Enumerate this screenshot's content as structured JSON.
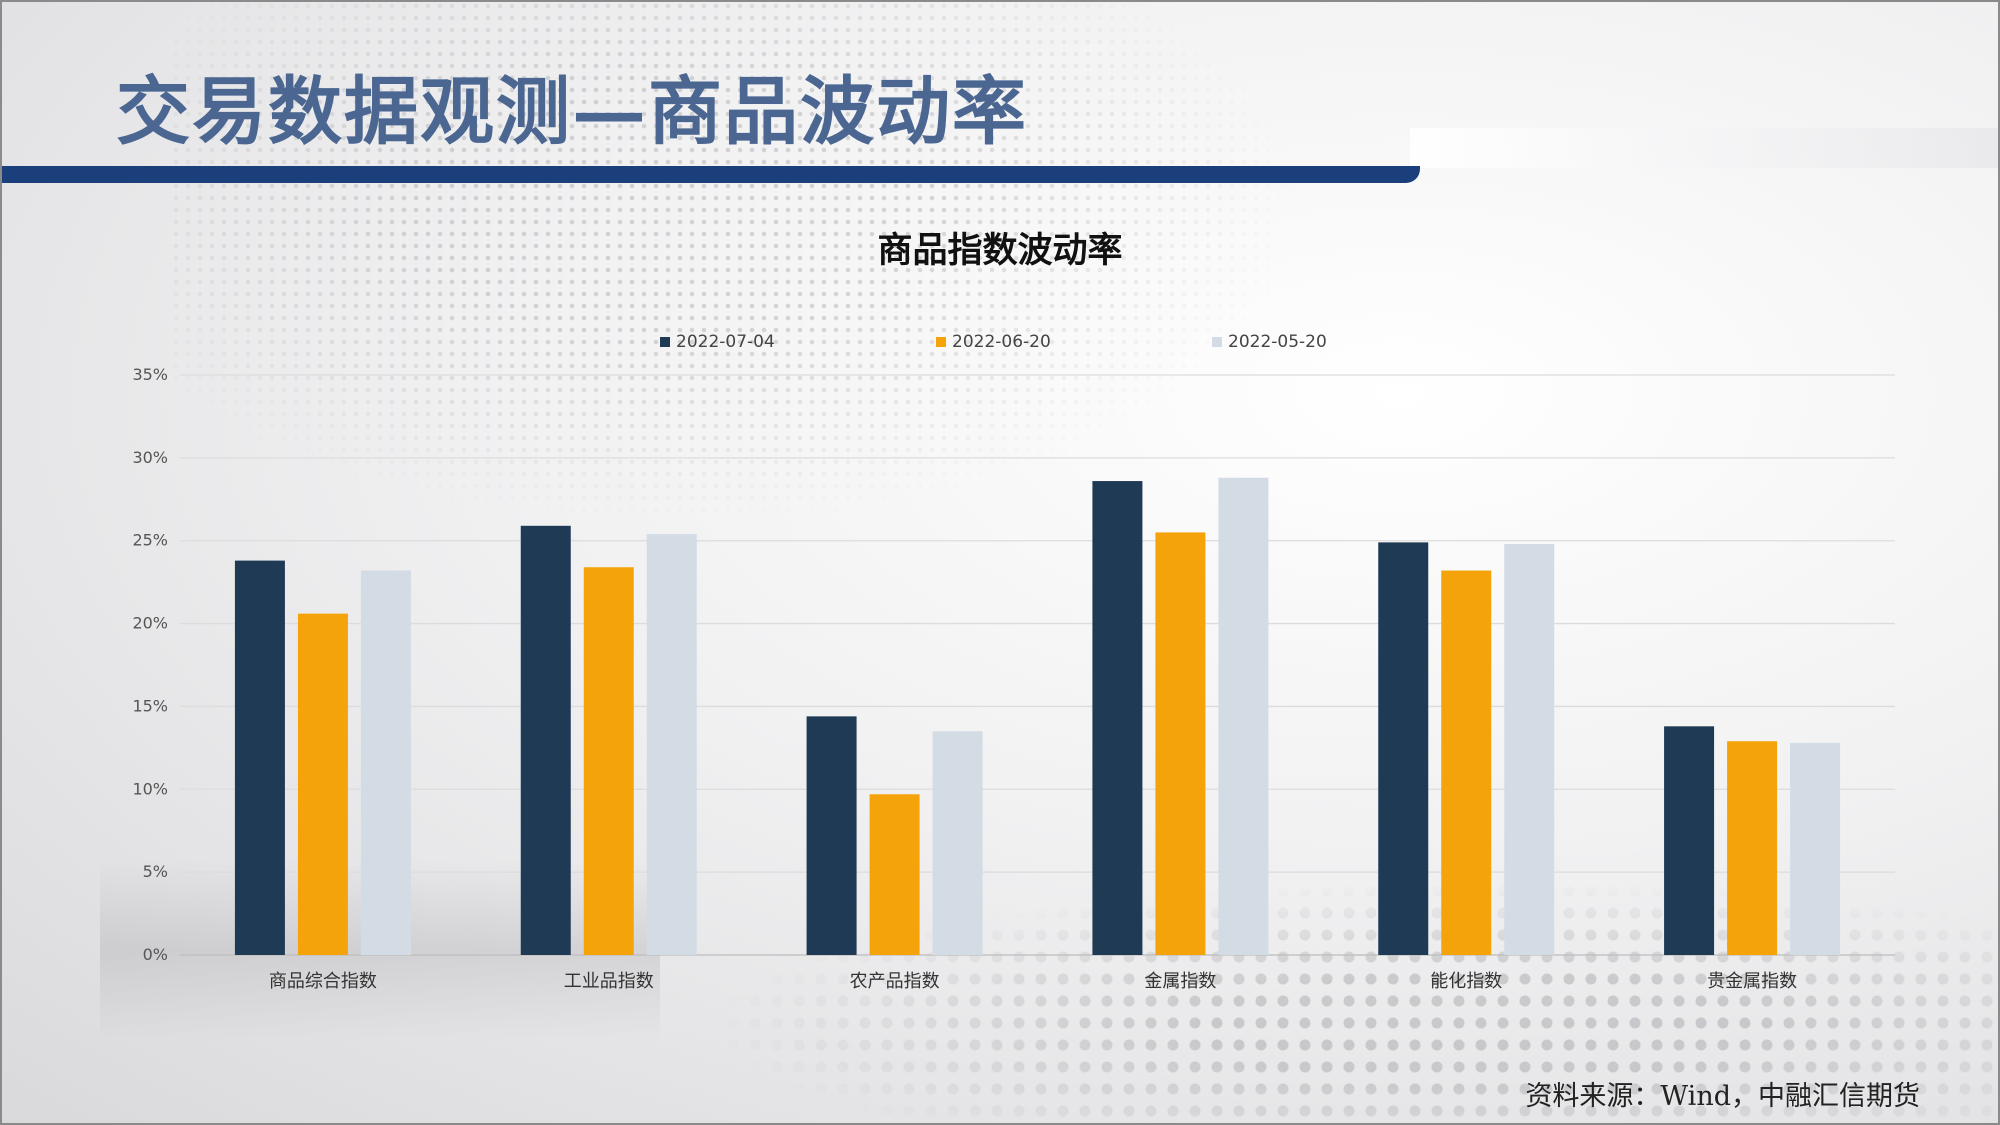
{
  "page": {
    "title": "交易数据观测—商品波动率",
    "source": "资料来源：Wind，中融汇信期货"
  },
  "chart_data": {
    "type": "bar",
    "title": "商品指数波动率",
    "categories": [
      "商品综合指数",
      "工业品指数",
      "农产品指数",
      "金属指数",
      "能化指数",
      "贵金属指数"
    ],
    "series": [
      {
        "name": "2022-07-04",
        "color": "#1f3a55",
        "values": [
          23.8,
          25.9,
          14.4,
          28.6,
          24.9,
          13.8
        ]
      },
      {
        "name": "2022-06-20",
        "color": "#f5a30a",
        "values": [
          20.6,
          23.4,
          9.7,
          25.5,
          23.2,
          12.9
        ]
      },
      {
        "name": "2022-05-20",
        "color": "#d3dce5",
        "values": [
          23.2,
          25.4,
          13.5,
          28.8,
          24.8,
          12.8
        ]
      }
    ],
    "yticks": [
      "0%",
      "5%",
      "10%",
      "15%",
      "20%",
      "25%",
      "30%",
      "35%"
    ],
    "ylim": [
      0,
      35
    ],
    "grid": true,
    "legend_position": "top"
  }
}
